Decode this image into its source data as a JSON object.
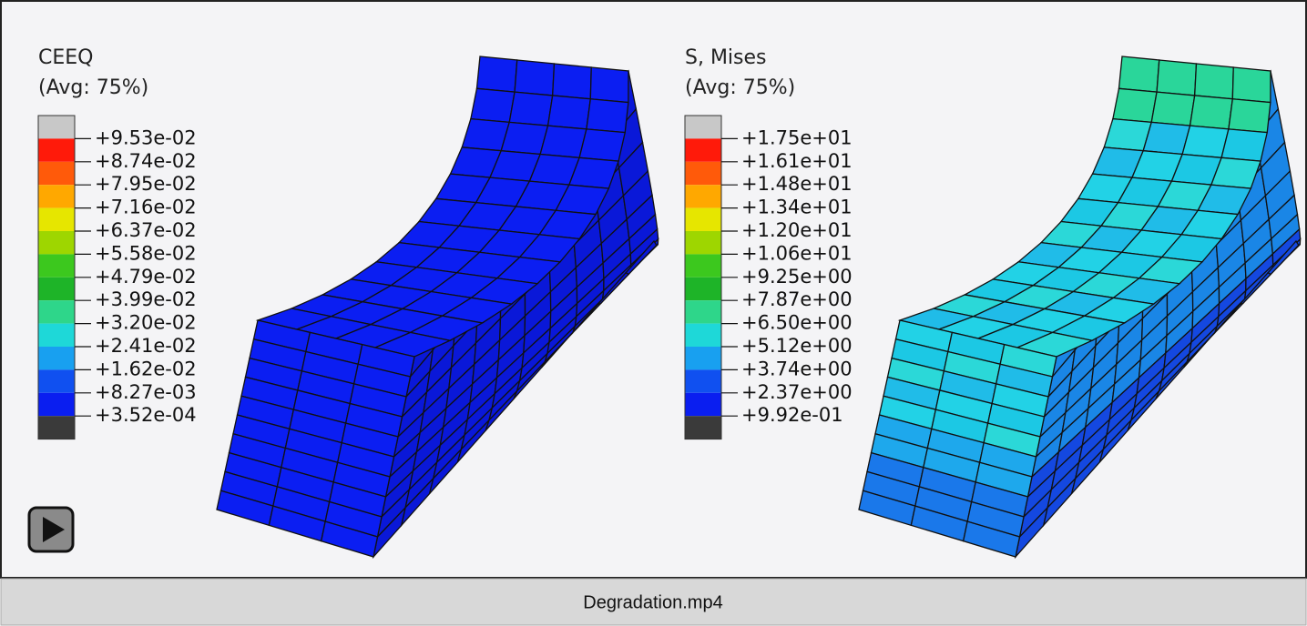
{
  "legends": [
    {
      "title": "CEEQ",
      "subtitle": "(Avg: 75%)",
      "labels": [
        "+9.53e-02",
        "+8.74e-02",
        "+7.95e-02",
        "+7.16e-02",
        "+6.37e-02",
        "+5.58e-02",
        "+4.79e-02",
        "+3.99e-02",
        "+3.20e-02",
        "+2.41e-02",
        "+1.62e-02",
        "+8.27e-03",
        "+3.52e-04"
      ]
    },
    {
      "title": "S, Mises",
      "subtitle": "(Avg: 75%)",
      "labels": [
        "+1.75e+01",
        "+1.61e+01",
        "+1.48e+01",
        "+1.34e+01",
        "+1.20e+01",
        "+1.06e+01",
        "+9.25e+00",
        "+7.87e+00",
        "+6.50e+00",
        "+5.12e+00",
        "+3.74e+00",
        "+2.37e+00",
        "+9.92e-01"
      ]
    }
  ],
  "band_colors": [
    "#c8c8c8",
    "#ff1a0a",
    "#ff5a0a",
    "#ffa800",
    "#e6e600",
    "#9ed600",
    "#3cc81e",
    "#1eb428",
    "#2ed68a",
    "#1ed8d8",
    "#18a0f0",
    "#1050f0",
    "#0a1ef0",
    "#3a3a3a"
  ],
  "caption": "Degradation.mp4"
}
